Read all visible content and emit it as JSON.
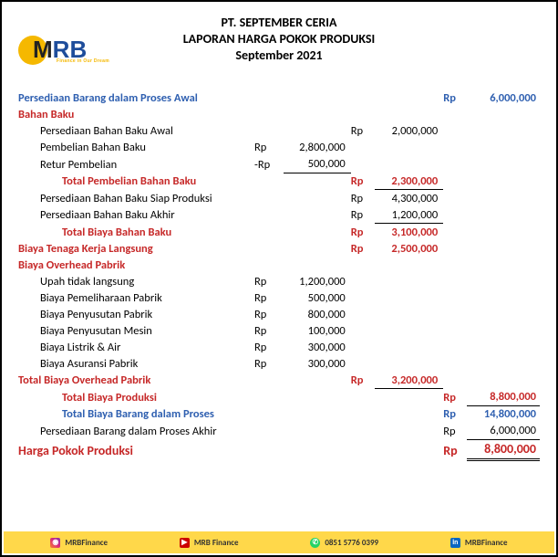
{
  "header": {
    "company": "PT. SEPTEMBER CERIA",
    "title": "LAPORAN HARGA POKOK PRODUKSI",
    "period": "September 2021"
  },
  "logo": {
    "m": "M",
    "rb": "RB",
    "tag": "Finance in Our Dream"
  },
  "colors": {
    "blue": "#2e5fb0",
    "red": "#c62828",
    "yellow": "#ffd84a"
  },
  "lines": {
    "persediaan_awal": {
      "label": "Persediaan Barang dalam Proses Awal",
      "cur": "Rp",
      "val": "6,000,000"
    },
    "bahan_baku": {
      "label": "Bahan Baku"
    },
    "bb_awal": {
      "label": "Persediaan Bahan Baku Awal",
      "cur": "Rp",
      "val": "2,000,000"
    },
    "pembelian_bb": {
      "label": "Pembelian Bahan Baku",
      "cur": "Rp",
      "val": "2,800,000"
    },
    "retur": {
      "label": "Retur Pembelian",
      "cur": "-Rp",
      "val": "500,000"
    },
    "total_pembelian_bb": {
      "label": "Total Pembelian Bahan Baku",
      "cur": "Rp",
      "val": "2,300,000"
    },
    "bb_siap": {
      "label": "Persediaan Bahan Baku Siap Produksi",
      "cur": "Rp",
      "val": "4,300,000"
    },
    "bb_akhir": {
      "label": "Persediaan Bahan Baku Akhir",
      "cur": "Rp",
      "val": "1,200,000"
    },
    "total_bb": {
      "label": "Total Biaya Bahan Baku",
      "cur": "Rp",
      "val": "3,100,000"
    },
    "btkl": {
      "label": "Biaya Tenaga Kerja Langsung",
      "cur": "Rp",
      "val": "2,500,000"
    },
    "bop": {
      "label": "Biaya Overhead Pabrik"
    },
    "upah": {
      "label": "Upah tidak langsung",
      "cur": "Rp",
      "val": "1,200,000"
    },
    "pelihara": {
      "label": "Biaya Pemeliharaan Pabrik",
      "cur": "Rp",
      "val": "500,000"
    },
    "susut_pabrik": {
      "label": "Biaya Penyusutan Pabrik",
      "cur": "Rp",
      "val": "800,000"
    },
    "susut_mesin": {
      "label": "Biaya Penyusutan Mesin",
      "cur": "Rp",
      "val": "100,000"
    },
    "listrik": {
      "label": "Biaya Listrik & Air",
      "cur": "Rp",
      "val": "300,000"
    },
    "asuransi": {
      "label": "Biaya Asuransi Pabrik",
      "cur": "Rp",
      "val": "300,000"
    },
    "total_bop": {
      "label": "Total Biaya Overhead Pabrik",
      "cur": "Rp",
      "val": "3,200,000"
    },
    "total_biaya_prod": {
      "label": "Total Biaya Produksi",
      "cur": "Rp",
      "val": "8,800,000"
    },
    "total_bdp": {
      "label": "Total Biaya Barang dalam Proses",
      "cur": "Rp",
      "val": "14,800,000"
    },
    "bdp_akhir": {
      "label": "Persediaan Barang dalam Proses Akhir",
      "cur": "Rp",
      "val": "6,000,000"
    },
    "hpp": {
      "label": "Harga Pokok Produksi",
      "cur": "Rp",
      "val": "8,800,000"
    }
  },
  "footer": {
    "ig": "MRBFinance",
    "yt": "MRB Finance",
    "wa": "0851 5776 0399",
    "li": "MRBFinance"
  }
}
